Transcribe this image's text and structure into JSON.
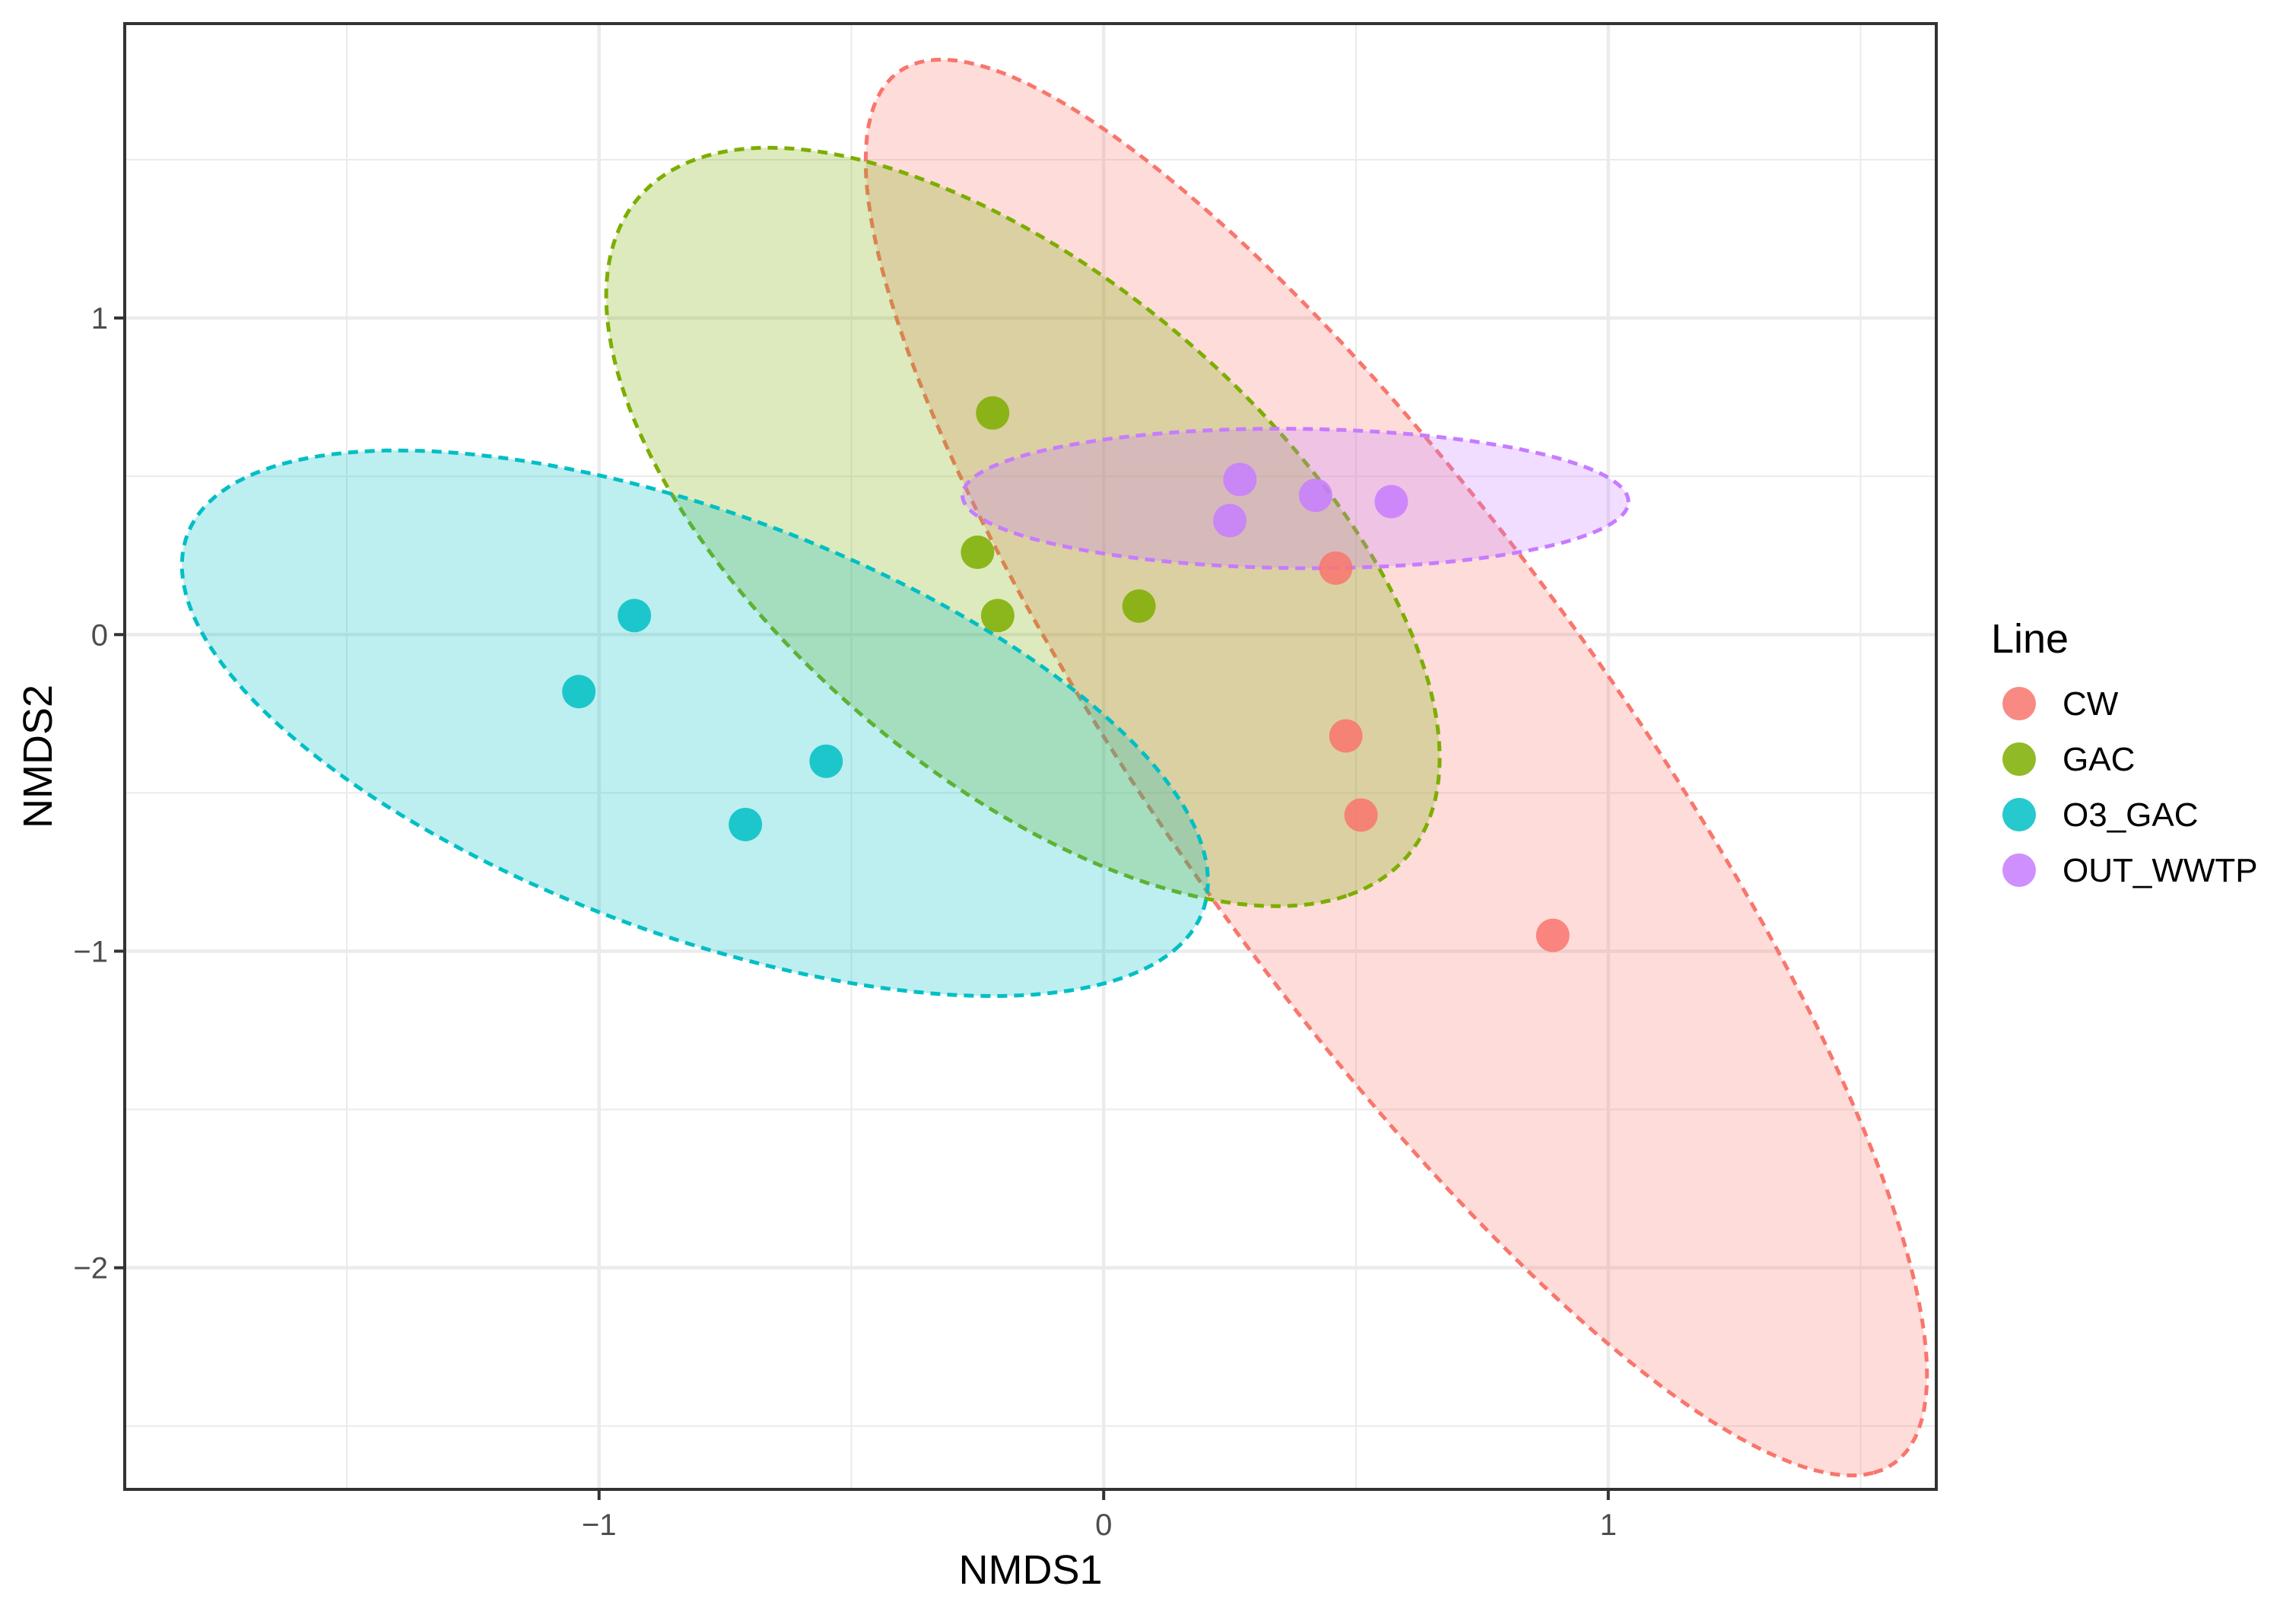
{
  "chart_data": {
    "type": "scatter",
    "title": "",
    "xlabel": "NMDS1",
    "ylabel": "NMDS2",
    "xlim": [
      -1.94,
      1.65
    ],
    "ylim": [
      -2.7,
      1.93
    ],
    "x_ticks": [
      -1,
      0,
      1
    ],
    "x_tick_labels": [
      "−1",
      "0",
      "1"
    ],
    "y_ticks": [
      -2,
      -1,
      0,
      1
    ],
    "y_tick_labels": [
      "−2",
      "−1",
      "0",
      "1"
    ],
    "grid": true,
    "legend_position": "right",
    "legend_title": "Line",
    "series": [
      {
        "name": "CW",
        "color": "#F8766D",
        "points": [
          [
            0.46,
            0.21
          ],
          [
            0.48,
            -0.32
          ],
          [
            0.51,
            -0.57
          ],
          [
            0.89,
            -0.95
          ]
        ],
        "ellipse": {
          "cx": 0.58,
          "cy": -0.42,
          "rx": 2.42,
          "ry": 0.5,
          "angle_deg": -67
        }
      },
      {
        "name": "GAC",
        "color": "#7CAE00",
        "points": [
          [
            -0.22,
            0.7
          ],
          [
            -0.25,
            0.26
          ],
          [
            -0.21,
            0.06
          ],
          [
            0.07,
            0.09
          ]
        ],
        "ellipse": {
          "cx": -0.16,
          "cy": 0.34,
          "rx": 1.33,
          "ry": 0.59,
          "angle_deg": -61
        }
      },
      {
        "name": "O3_GAC",
        "color": "#00BFC4",
        "points": [
          [
            -0.93,
            0.06
          ],
          [
            -1.04,
            -0.18
          ],
          [
            -0.55,
            -0.4
          ],
          [
            -0.71,
            -0.6
          ]
        ],
        "ellipse": {
          "cx": -0.81,
          "cy": -0.28,
          "rx": 1.19,
          "ry": 0.6,
          "angle_deg": -37
        }
      },
      {
        "name": "OUT_WWTP",
        "color": "#C77CFF",
        "points": [
          [
            0.27,
            0.49
          ],
          [
            0.25,
            0.36
          ],
          [
            0.42,
            0.44
          ],
          [
            0.57,
            0.42
          ]
        ],
        "ellipse": {
          "cx": 0.38,
          "cy": 0.43,
          "rx": 0.66,
          "ry": 0.22,
          "angle_deg": -1
        }
      }
    ]
  }
}
